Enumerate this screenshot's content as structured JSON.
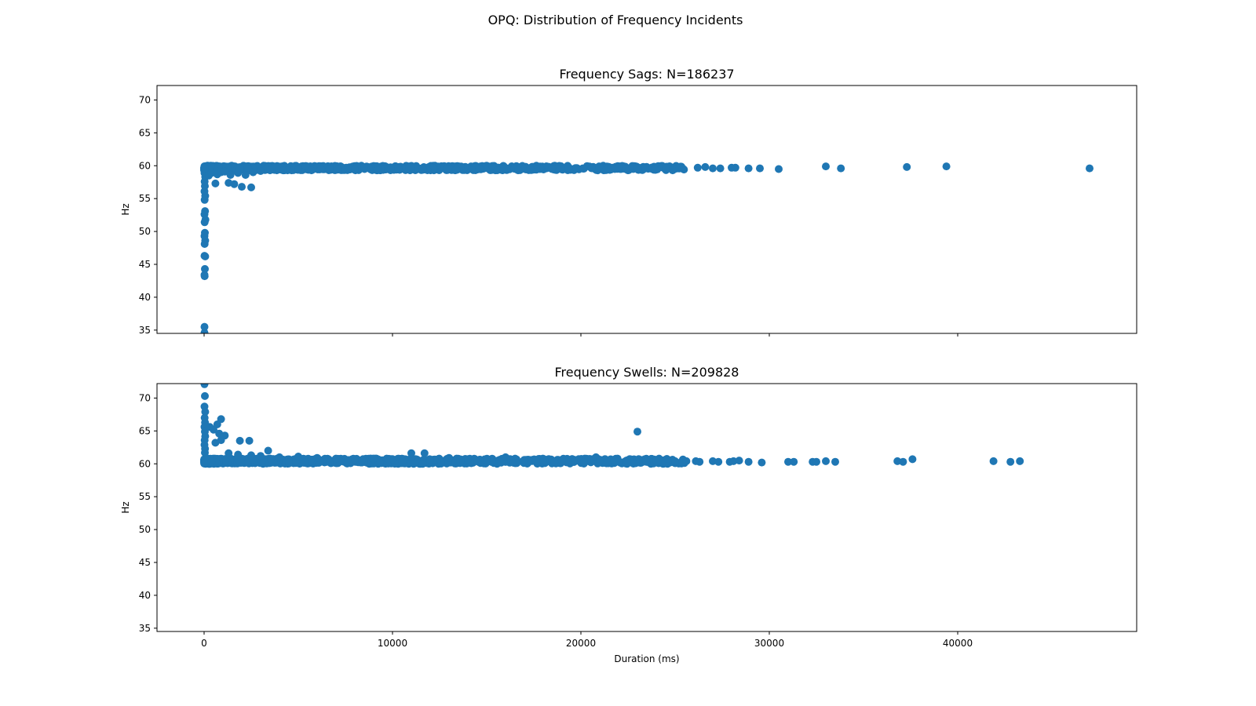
{
  "figure": {
    "title": "OPQ: Distribution of Frequency Incidents",
    "marker_color": "#1f77b4"
  },
  "chart_data": [
    {
      "type": "scatter",
      "title": "Frequency Sags: N=186237",
      "xlabel": "",
      "ylabel": "Hz",
      "xlim": [
        -2500,
        49500
      ],
      "ylim": [
        34.5,
        72.2
      ],
      "xticks": [
        0,
        10000,
        20000,
        30000,
        40000
      ],
      "xtick_labels_visible": false,
      "yticks": [
        35,
        40,
        45,
        50,
        55,
        60,
        65,
        70
      ],
      "grid": false,
      "points": [
        [
          20,
          34.6
        ],
        [
          20,
          35.5
        ],
        [
          30,
          43.2
        ],
        [
          20,
          43.4
        ],
        [
          40,
          44.3
        ],
        [
          60,
          46.2
        ],
        [
          20,
          46.3
        ],
        [
          30,
          48.1
        ],
        [
          60,
          48.6
        ],
        [
          20,
          49.3
        ],
        [
          40,
          49.8
        ],
        [
          30,
          51.4
        ],
        [
          70,
          51.8
        ],
        [
          20,
          52.6
        ],
        [
          50,
          53.1
        ],
        [
          30,
          54.8
        ],
        [
          60,
          55.4
        ],
        [
          20,
          56.1
        ],
        [
          40,
          56.9
        ],
        [
          30,
          57.6
        ],
        [
          60,
          58.3
        ],
        [
          20,
          58.9
        ],
        [
          40,
          59.3
        ],
        [
          30,
          59.6
        ],
        [
          600,
          57.3
        ],
        [
          1300,
          57.4
        ],
        [
          1600,
          57.2
        ],
        [
          2000,
          56.8
        ],
        [
          2500,
          56.7
        ],
        [
          250,
          58.5
        ],
        [
          400,
          58.9
        ],
        [
          700,
          58.7
        ],
        [
          900,
          59.0
        ],
        [
          1100,
          59.1
        ],
        [
          1400,
          58.6
        ],
        [
          1800,
          58.9
        ],
        [
          2200,
          58.6
        ],
        [
          2600,
          59.0
        ],
        [
          3000,
          59.2
        ],
        [
          3500,
          59.3
        ],
        [
          4200,
          59.3
        ],
        [
          5000,
          59.4
        ],
        [
          5700,
          59.3
        ],
        [
          6200,
          59.5
        ],
        [
          7100,
          59.4
        ],
        [
          8000,
          59.5
        ],
        [
          9200,
          59.3
        ],
        [
          10300,
          59.6
        ],
        [
          11600,
          59.5
        ],
        [
          12900,
          59.5
        ],
        [
          13400,
          59.4
        ],
        [
          14600,
          59.5
        ],
        [
          16000,
          59.6
        ],
        [
          17300,
          59.6
        ],
        [
          18900,
          59.6
        ],
        [
          20100,
          59.6
        ],
        [
          21800,
          59.5
        ],
        [
          23000,
          59.6
        ],
        [
          24500,
          59.7
        ],
        [
          25400,
          59.6
        ],
        [
          26200,
          59.7
        ],
        [
          26600,
          59.8
        ],
        [
          27000,
          59.6
        ],
        [
          27400,
          59.6
        ],
        [
          28000,
          59.7
        ],
        [
          28200,
          59.7
        ],
        [
          28900,
          59.6
        ],
        [
          29500,
          59.6
        ],
        [
          30500,
          59.5
        ],
        [
          33000,
          59.9
        ],
        [
          33800,
          59.6
        ],
        [
          37300,
          59.8
        ],
        [
          39400,
          59.9
        ],
        [
          47000,
          59.6
        ]
      ],
      "dense_band": {
        "x_range": [
          0,
          25500
        ],
        "y_range": [
          59.3,
          60.0
        ]
      }
    },
    {
      "type": "scatter",
      "title": "Frequency Swells: N=209828",
      "xlabel": "Duration (ms)",
      "ylabel": "Hz",
      "xlim": [
        -2500,
        49500
      ],
      "ylim": [
        34.5,
        72.2
      ],
      "xticks": [
        0,
        10000,
        20000,
        30000,
        40000
      ],
      "xtick_labels_visible": true,
      "yticks": [
        35,
        40,
        45,
        50,
        55,
        60,
        65,
        70
      ],
      "grid": false,
      "points": [
        [
          20,
          72.1
        ],
        [
          40,
          70.3
        ],
        [
          20,
          68.7
        ],
        [
          60,
          67.9
        ],
        [
          30,
          67.0
        ],
        [
          50,
          66.3
        ],
        [
          20,
          65.6
        ],
        [
          40,
          64.9
        ],
        [
          60,
          64.2
        ],
        [
          30,
          63.6
        ],
        [
          20,
          62.9
        ],
        [
          50,
          62.3
        ],
        [
          40,
          61.7
        ],
        [
          300,
          65.6
        ],
        [
          500,
          65.2
        ],
        [
          700,
          66.0
        ],
        [
          900,
          66.8
        ],
        [
          800,
          64.6
        ],
        [
          1100,
          64.3
        ],
        [
          900,
          63.6
        ],
        [
          600,
          63.2
        ],
        [
          1900,
          63.5
        ],
        [
          2400,
          63.5
        ],
        [
          3400,
          62.0
        ],
        [
          23000,
          64.9
        ],
        [
          11700,
          61.6
        ],
        [
          11000,
          61.6
        ],
        [
          20800,
          61.0
        ],
        [
          16000,
          61.0
        ],
        [
          13000,
          60.9
        ],
        [
          1300,
          61.6
        ],
        [
          1800,
          61.4
        ],
        [
          2500,
          61.3
        ],
        [
          3000,
          61.2
        ],
        [
          4000,
          61.0
        ],
        [
          5000,
          61.1
        ],
        [
          6000,
          60.9
        ],
        [
          7000,
          60.8
        ],
        [
          8000,
          60.7
        ],
        [
          9000,
          60.8
        ],
        [
          10000,
          60.7
        ],
        [
          12000,
          60.6
        ],
        [
          14000,
          60.7
        ],
        [
          15000,
          60.6
        ],
        [
          17000,
          60.6
        ],
        [
          18000,
          60.5
        ],
        [
          19000,
          60.5
        ],
        [
          21000,
          60.5
        ],
        [
          22000,
          60.4
        ],
        [
          24000,
          60.5
        ],
        [
          25000,
          60.4
        ],
        [
          25600,
          60.4
        ],
        [
          26100,
          60.4
        ],
        [
          26300,
          60.3
        ],
        [
          27000,
          60.4
        ],
        [
          27300,
          60.3
        ],
        [
          27900,
          60.3
        ],
        [
          28100,
          60.4
        ],
        [
          28400,
          60.5
        ],
        [
          28900,
          60.3
        ],
        [
          29600,
          60.2
        ],
        [
          31000,
          60.3
        ],
        [
          31300,
          60.3
        ],
        [
          32300,
          60.3
        ],
        [
          32500,
          60.3
        ],
        [
          33000,
          60.4
        ],
        [
          33500,
          60.3
        ],
        [
          36800,
          60.4
        ],
        [
          37100,
          60.3
        ],
        [
          37600,
          60.7
        ],
        [
          41900,
          60.4
        ],
        [
          42800,
          60.3
        ],
        [
          43300,
          60.4
        ]
      ],
      "dense_band": {
        "x_range": [
          0,
          25500
        ],
        "y_range": [
          60.0,
          60.8
        ]
      }
    }
  ]
}
